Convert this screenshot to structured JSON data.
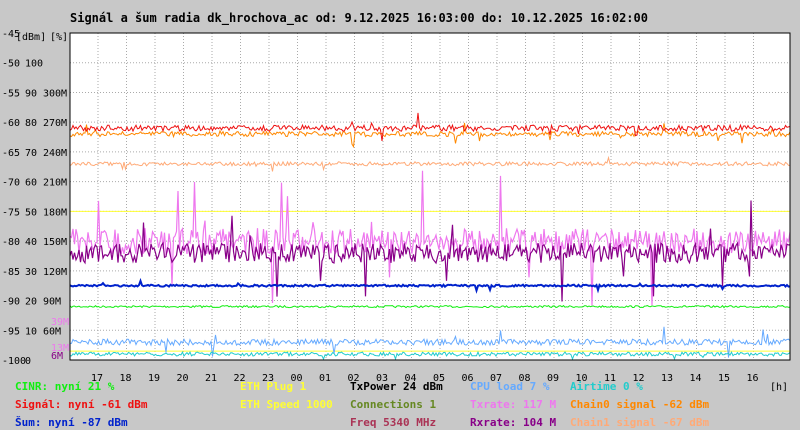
{
  "chart_data": {
    "type": "line",
    "title": "Signál a šum radia dk_hrochova_ac od: 9.12.2025 16:03:00 do: 10.12.2025 16:02:00",
    "xlabel": "[h]",
    "ylabel_left": "[dBm]",
    "ylabel_mid": "[%]",
    "x_ticks": [
      "17",
      "18",
      "19",
      "20",
      "21",
      "22",
      "23",
      "00",
      "01",
      "02",
      "03",
      "04",
      "05",
      "06",
      "07",
      "08",
      "09",
      "10",
      "11",
      "12",
      "13",
      "14",
      "15",
      "16"
    ],
    "y_ticks_dbm": [
      -45,
      -50,
      -55,
      -60,
      -65,
      -70,
      -75,
      -80,
      -85,
      -90,
      -95,
      -100
    ],
    "y_ticks_pct": [
      100,
      90,
      80,
      70,
      60,
      50,
      40,
      30,
      20,
      10,
      0
    ],
    "y_ticks_rate": [
      "300M",
      "270M",
      "240M",
      "210M",
      "180M",
      "150M",
      "120M",
      "90M",
      "60M"
    ],
    "ylim_dbm": [
      -100,
      -45
    ],
    "grid": true,
    "series": [
      {
        "name": "Signál",
        "color": "#ee1111",
        "level_dbm": -61
      },
      {
        "name": "Chain0 signal",
        "color": "#ff8800",
        "level_dbm": -62
      },
      {
        "name": "Chain1 signal",
        "color": "#ffaa77",
        "level_dbm": -67
      },
      {
        "name": "Šum",
        "color": "#0022cc",
        "level_dbm": -87
      },
      {
        "name": "CINR",
        "color": "#11ee11",
        "level_pct": 21
      },
      {
        "name": "Txrate",
        "color": "#ee77ee",
        "level_mbps": 117
      },
      {
        "name": "Rxrate",
        "color": "#880088",
        "level_mbps": 104
      },
      {
        "name": "CPU load",
        "color": "#66aaff",
        "level_pct": 7
      },
      {
        "name": "Airtime",
        "color": "#22cccc",
        "level_pct": 0
      },
      {
        "name": "ETH Speed",
        "color": "#ffff33",
        "level_mbps": 1000
      }
    ]
  },
  "side_labels": {
    "txrate": "39M",
    "rxrate": "13M",
    "rx2": "6M"
  },
  "legend": [
    [
      "CINR: nyní 21 %",
      "ETH Plug 1",
      "TxPower 24 dBm",
      "CPU load 7 %",
      "Airtime 0 %"
    ],
    [
      "Signál: nyní -61 dBm",
      "ETH Speed 1000",
      "Connections 1",
      "Txrate: 117 M",
      "Chain0 signal -62 dBm"
    ],
    [
      "Šum: nyní -87 dBm",
      "",
      "Freq 5340 MHz",
      "Rxrate: 104 M",
      "Chain1 signal -67 dBm"
    ]
  ],
  "legend_colors": [
    [
      "#11ee11",
      "#ffff33",
      "#000000",
      "#66aaff",
      "#22cccc"
    ],
    [
      "#ee1111",
      "#ffff33",
      "#668822",
      "#ee77ee",
      "#ff8800"
    ],
    [
      "#0022cc",
      "#ffff33",
      "#aa3355",
      "#880088",
      "#ffaa77"
    ]
  ]
}
